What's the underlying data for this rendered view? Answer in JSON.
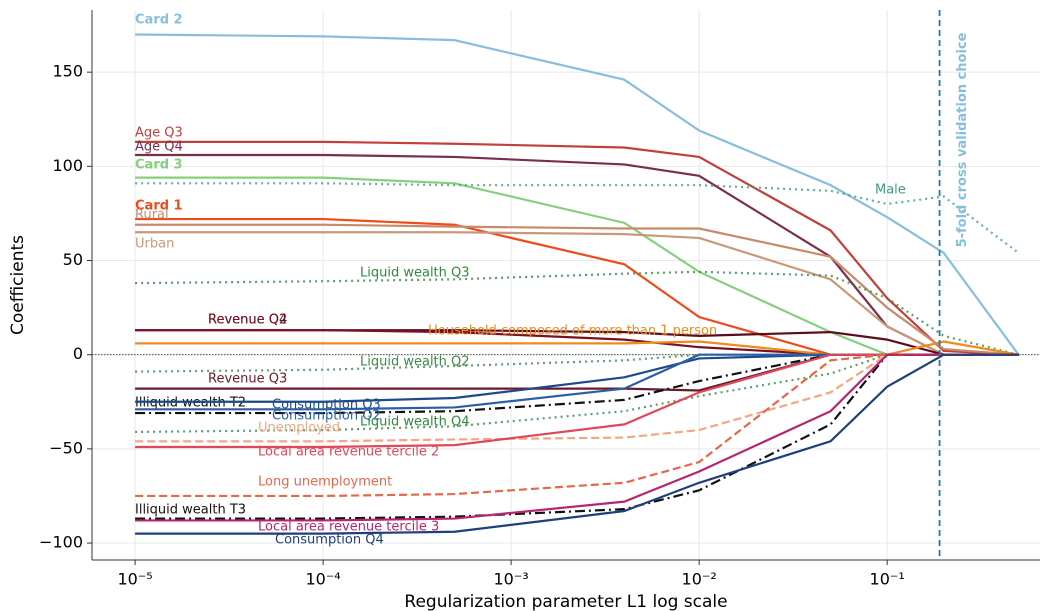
{
  "chart_data": {
    "type": "line",
    "xlabel": "Regularization parameter L1 log scale",
    "ylabel": "Coefficients",
    "annotation": "5-fold cross validation choice",
    "vline_x": 0.19,
    "xscale": "log",
    "grid": true,
    "xlim": [
      5.9e-06,
      0.65
    ],
    "ylim": [
      -109,
      183
    ],
    "xticks": [
      {
        "value": 1e-05,
        "label": "10⁻⁵"
      },
      {
        "value": 0.0001,
        "label": "10⁻⁴"
      },
      {
        "value": 0.001,
        "label": "10⁻³"
      },
      {
        "value": 0.01,
        "label": "10⁻²"
      },
      {
        "value": 0.1,
        "label": "10⁻¹"
      }
    ],
    "yticks": [
      {
        "value": -100,
        "label": "−100"
      },
      {
        "value": -50,
        "label": "−50"
      },
      0,
      50,
      100,
      150
    ],
    "x": [
      1e-05,
      0.0001,
      0.0005,
      0.004,
      0.01,
      0.05,
      0.1,
      0.2,
      0.5
    ],
    "series": [
      {
        "name": "Card 2",
        "color": "#86bfdc",
        "linestyle": "solid",
        "values": [
          170,
          169,
          167,
          146,
          119,
          90,
          73,
          54,
          0
        ]
      },
      {
        "name": "Age Q3",
        "color": "#c0413b",
        "linestyle": "solid",
        "values": [
          113,
          113,
          112,
          110,
          105,
          66,
          30,
          2,
          0
        ]
      },
      {
        "name": "Age Q4",
        "color": "#7a2e4a",
        "linestyle": "solid",
        "values": [
          106,
          106,
          105,
          101,
          95,
          52,
          15,
          0,
          0
        ]
      },
      {
        "name": "Card 3",
        "color": "#86cf7f",
        "linestyle": "solid",
        "values": [
          94,
          94,
          91,
          70,
          44,
          12,
          0,
          0,
          0
        ]
      },
      {
        "name": "Male",
        "color": "#3a9e80",
        "linestyle": "dotted",
        "values": [
          91,
          91,
          90,
          90,
          90,
          87,
          80,
          84,
          54
        ]
      },
      {
        "name": "Card 1",
        "color": "#f04a1a",
        "linestyle": "solid",
        "values": [
          72,
          72,
          69,
          48,
          20,
          0,
          0,
          0,
          0
        ]
      },
      {
        "name": "Rural",
        "color": "#c88a6c",
        "linestyle": "solid",
        "values": [
          69,
          69,
          68,
          67,
          67,
          52,
          25,
          3,
          0
        ]
      },
      {
        "name": "Urban",
        "color": "#c9987a",
        "linestyle": "solid",
        "values": [
          65,
          65,
          65,
          64,
          62,
          40,
          15,
          0,
          0
        ]
      },
      {
        "name": "Liquid wealth Q3",
        "color": "#2e8b3e",
        "linestyle": "dotted",
        "values": [
          38,
          39,
          40,
          43,
          44,
          42,
          30,
          10,
          0
        ]
      },
      {
        "name": "Revenue Q4",
        "color": "#5a0d1a",
        "linestyle": "solid",
        "values": [
          13,
          13,
          13,
          12,
          10,
          12,
          8,
          0,
          0
        ]
      },
      {
        "name": "Revenue Q2",
        "color": "#7a1020",
        "linestyle": "solid",
        "values": [
          13,
          13,
          12,
          8,
          4,
          0,
          0,
          0,
          0
        ]
      },
      {
        "name": "Household composed of more than 1 person",
        "color": "#f08a1e",
        "linestyle": "solid",
        "values": [
          6,
          6,
          6,
          6,
          7,
          0,
          0,
          7,
          0
        ]
      },
      {
        "name": "Liquid wealth Q2",
        "color": "#3a8a4a",
        "linestyle": "dotted",
        "values": [
          -9,
          -8,
          -6,
          -3,
          0,
          0,
          0,
          0,
          0
        ]
      },
      {
        "name": "Revenue Q3",
        "color": "#6b1a2a",
        "linestyle": "solid",
        "values": [
          -18,
          -18,
          -18,
          -18,
          -19,
          0,
          0,
          0,
          0
        ]
      },
      {
        "name": "Illiquid wealth T2",
        "color": "#111111",
        "linestyle": "dashdot",
        "values": [
          -31,
          -31,
          -30,
          -24,
          -14,
          0,
          0,
          0,
          0
        ]
      },
      {
        "name": "Consumption Q3",
        "color": "#1f4a8a",
        "linestyle": "solid",
        "values": [
          -25,
          -25,
          -23,
          -12,
          -2,
          0,
          0,
          0,
          0
        ]
      },
      {
        "name": "Consumption Q2",
        "color": "#2a5fa8",
        "linestyle": "solid",
        "values": [
          -29,
          -29,
          -28,
          -18,
          0,
          0,
          0,
          0,
          0
        ]
      },
      {
        "name": "Liquid wealth Q4",
        "color": "#2e8b3e",
        "linestyle": "dotted",
        "values": [
          -41,
          -40,
          -38,
          -30,
          -22,
          -10,
          0,
          0,
          0
        ]
      },
      {
        "name": "Unemployed",
        "color": "#f4a582",
        "linestyle": "dashed",
        "values": [
          -46,
          -46,
          -45,
          -44,
          -40,
          -20,
          0,
          0,
          0
        ]
      },
      {
        "name": "Local area revenue tercile 2",
        "color": "#e0485a",
        "linestyle": "solid",
        "values": [
          -49,
          -49,
          -48,
          -37,
          -20,
          0,
          0,
          0,
          0
        ]
      },
      {
        "name": "Long unemployment",
        "color": "#e8664a",
        "linestyle": "dashed",
        "values": [
          -75,
          -75,
          -74,
          -68,
          -57,
          -3,
          0,
          0,
          0
        ]
      },
      {
        "name": "Illiquid wealth T3",
        "color": "#111111",
        "linestyle": "dashdot",
        "values": [
          -87,
          -87,
          -86,
          -82,
          -72,
          -37,
          0,
          0,
          0
        ]
      },
      {
        "name": "Local area revenue tercile 3",
        "color": "#b5266e",
        "linestyle": "solid",
        "values": [
          -88,
          -88,
          -87,
          -78,
          -62,
          -30,
          0,
          0,
          0
        ]
      },
      {
        "name": "Consumption Q4",
        "color": "#1f3f7a",
        "linestyle": "solid",
        "values": [
          -95,
          -95,
          -94,
          -83,
          -68,
          -46,
          -17,
          0,
          0
        ]
      }
    ]
  }
}
